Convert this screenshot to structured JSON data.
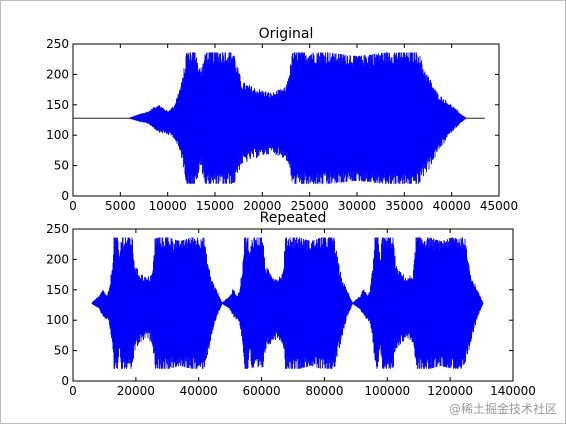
{
  "chart_data": [
    {
      "type": "line",
      "title": "Original",
      "xlim": [
        0,
        45000
      ],
      "ylim": [
        0,
        250
      ],
      "xticks": [
        0,
        5000,
        10000,
        15000,
        20000,
        25000,
        30000,
        35000,
        40000,
        45000
      ],
      "yticks": [
        0,
        50,
        100,
        150,
        200,
        250
      ],
      "baseline": 128,
      "x_extent": [
        0,
        43500
      ],
      "color": "#0000ff",
      "grid": false,
      "envelope": [
        {
          "x": 0,
          "min": 128,
          "max": 128
        },
        {
          "x": 6000,
          "min": 127,
          "max": 129
        },
        {
          "x": 7000,
          "min": 122,
          "max": 135
        },
        {
          "x": 8000,
          "min": 118,
          "max": 140
        },
        {
          "x": 9000,
          "min": 105,
          "max": 152
        },
        {
          "x": 10000,
          "min": 100,
          "max": 140
        },
        {
          "x": 10700,
          "min": 95,
          "max": 150
        },
        {
          "x": 11500,
          "min": 60,
          "max": 190
        },
        {
          "x": 12000,
          "min": 20,
          "max": 236
        },
        {
          "x": 13000,
          "min": 20,
          "max": 236
        },
        {
          "x": 13500,
          "min": 45,
          "max": 210
        },
        {
          "x": 14000,
          "min": 20,
          "max": 236
        },
        {
          "x": 17000,
          "min": 20,
          "max": 236
        },
        {
          "x": 17800,
          "min": 50,
          "max": 190
        },
        {
          "x": 19000,
          "min": 60,
          "max": 180
        },
        {
          "x": 21000,
          "min": 70,
          "max": 170
        },
        {
          "x": 22500,
          "min": 60,
          "max": 180
        },
        {
          "x": 23200,
          "min": 20,
          "max": 236
        },
        {
          "x": 27000,
          "min": 20,
          "max": 236
        },
        {
          "x": 30000,
          "min": 25,
          "max": 230
        },
        {
          "x": 33000,
          "min": 20,
          "max": 236
        },
        {
          "x": 36500,
          "min": 20,
          "max": 236
        },
        {
          "x": 37500,
          "min": 40,
          "max": 200
        },
        {
          "x": 38500,
          "min": 70,
          "max": 170
        },
        {
          "x": 40000,
          "min": 105,
          "max": 150
        },
        {
          "x": 41000,
          "min": 120,
          "max": 135
        },
        {
          "x": 41500,
          "min": 127,
          "max": 129
        },
        {
          "x": 43500,
          "min": 128,
          "max": 128
        }
      ]
    },
    {
      "type": "line",
      "title": "Repeated",
      "xlim": [
        0,
        140000
      ],
      "ylim": [
        0,
        250
      ],
      "xticks": [
        0,
        20000,
        40000,
        60000,
        80000,
        100000,
        120000,
        140000
      ],
      "yticks": [
        0,
        50,
        100,
        150,
        200,
        250
      ],
      "baseline": 128,
      "x_extent": [
        6000,
        130500
      ],
      "repeat_count": 3,
      "color": "#0000ff",
      "grid": false
    }
  ],
  "watermark": "@稀土掘金技术社区"
}
